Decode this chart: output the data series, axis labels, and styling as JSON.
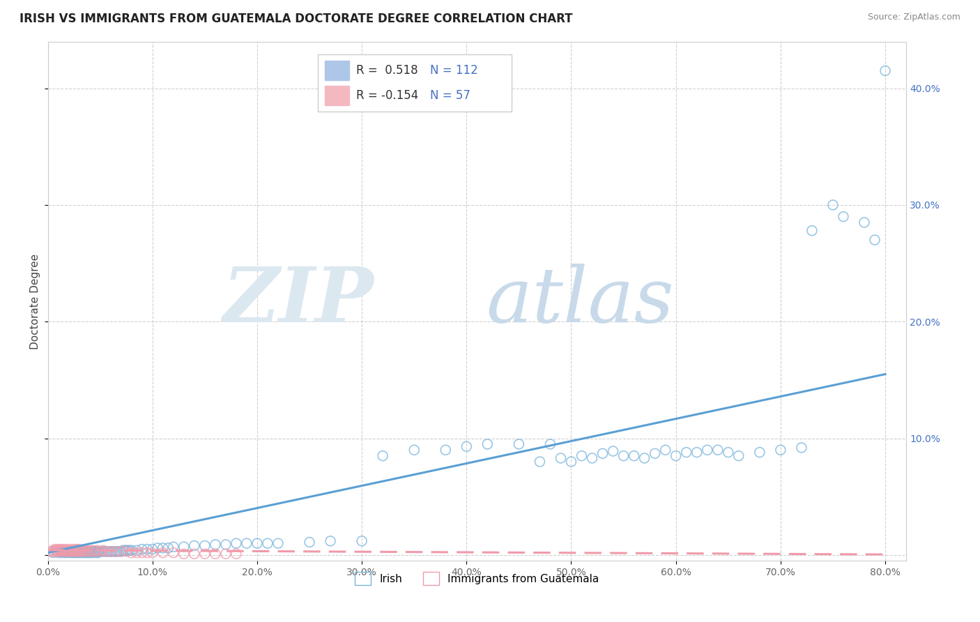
{
  "title": "IRISH VS IMMIGRANTS FROM GUATEMALA DOCTORATE DEGREE CORRELATION CHART",
  "source": "Source: ZipAtlas.com",
  "ylabel": "Doctorate Degree",
  "xlim": [
    0.0,
    0.82
  ],
  "ylim": [
    -0.005,
    0.44
  ],
  "xticks": [
    0.0,
    0.1,
    0.2,
    0.3,
    0.4,
    0.5,
    0.6,
    0.7,
    0.8
  ],
  "yticks": [
    0.0,
    0.1,
    0.2,
    0.3,
    0.4
  ],
  "xtick_labels": [
    "0.0%",
    "10.0%",
    "20.0%",
    "30.0%",
    "40.0%",
    "50.0%",
    "60.0%",
    "70.0%",
    "80.0%"
  ],
  "ytick_labels_right": [
    "",
    "10.0%",
    "20.0%",
    "30.0%",
    "40.0%"
  ],
  "irish_color": "#7ab5db",
  "guatemala_color": "#f09aaa",
  "irish_line_color": "#5a9fd4",
  "guatemala_line_color": "#f09aaa",
  "background_color": "#ffffff",
  "grid_color": "#d0d0d0",
  "title_fontsize": 12,
  "axis_label_fontsize": 11,
  "tick_fontsize": 10,
  "legend_R1": "R =  0.518",
  "legend_N1": "N = 112",
  "legend_R2": "R = -0.154",
  "legend_N2": "N = 57",
  "legend_color1": "#aec6e8",
  "legend_color2": "#f4b8c1",
  "legend_text_color": "#4472c4",
  "watermark_zip_color": "#e0e8f0",
  "watermark_atlas_color": "#d0dce8",
  "irish_x": [
    0.005,
    0.008,
    0.01,
    0.012,
    0.013,
    0.015,
    0.016,
    0.017,
    0.018,
    0.019,
    0.02,
    0.021,
    0.022,
    0.023,
    0.024,
    0.025,
    0.026,
    0.027,
    0.028,
    0.029,
    0.03,
    0.031,
    0.032,
    0.033,
    0.034,
    0.035,
    0.036,
    0.037,
    0.038,
    0.039,
    0.04,
    0.041,
    0.042,
    0.043,
    0.044,
    0.045,
    0.046,
    0.047,
    0.048,
    0.049,
    0.05,
    0.052,
    0.054,
    0.056,
    0.058,
    0.06,
    0.062,
    0.064,
    0.066,
    0.068,
    0.07,
    0.072,
    0.074,
    0.076,
    0.078,
    0.08,
    0.085,
    0.09,
    0.095,
    0.1,
    0.105,
    0.11,
    0.115,
    0.12,
    0.13,
    0.14,
    0.15,
    0.16,
    0.17,
    0.18,
    0.19,
    0.2,
    0.21,
    0.22,
    0.25,
    0.27,
    0.3,
    0.32,
    0.35,
    0.38,
    0.4,
    0.42,
    0.45,
    0.48,
    0.5,
    0.52,
    0.55,
    0.58,
    0.6,
    0.62,
    0.64,
    0.65,
    0.66,
    0.68,
    0.7,
    0.72,
    0.73,
    0.75,
    0.76,
    0.78,
    0.79,
    0.8,
    0.47,
    0.49,
    0.51,
    0.53,
    0.54,
    0.56,
    0.57,
    0.59,
    0.61,
    0.63
  ],
  "irish_y": [
    0.002,
    0.003,
    0.002,
    0.003,
    0.002,
    0.003,
    0.002,
    0.003,
    0.002,
    0.003,
    0.003,
    0.002,
    0.003,
    0.002,
    0.003,
    0.002,
    0.003,
    0.002,
    0.003,
    0.002,
    0.003,
    0.002,
    0.003,
    0.002,
    0.003,
    0.002,
    0.003,
    0.002,
    0.003,
    0.002,
    0.003,
    0.002,
    0.003,
    0.002,
    0.003,
    0.003,
    0.002,
    0.003,
    0.002,
    0.003,
    0.003,
    0.003,
    0.003,
    0.003,
    0.003,
    0.003,
    0.003,
    0.003,
    0.003,
    0.003,
    0.003,
    0.004,
    0.004,
    0.004,
    0.004,
    0.004,
    0.004,
    0.005,
    0.005,
    0.005,
    0.006,
    0.006,
    0.006,
    0.007,
    0.007,
    0.008,
    0.008,
    0.009,
    0.009,
    0.01,
    0.01,
    0.01,
    0.01,
    0.01,
    0.011,
    0.012,
    0.012,
    0.085,
    0.09,
    0.09,
    0.093,
    0.095,
    0.095,
    0.095,
    0.08,
    0.083,
    0.085,
    0.087,
    0.085,
    0.088,
    0.09,
    0.088,
    0.085,
    0.088,
    0.09,
    0.092,
    0.278,
    0.3,
    0.29,
    0.285,
    0.27,
    0.415,
    0.08,
    0.083,
    0.085,
    0.087,
    0.089,
    0.085,
    0.083,
    0.09,
    0.088,
    0.09
  ],
  "guat_x": [
    0.003,
    0.005,
    0.006,
    0.007,
    0.008,
    0.009,
    0.01,
    0.011,
    0.012,
    0.013,
    0.014,
    0.015,
    0.016,
    0.017,
    0.018,
    0.019,
    0.02,
    0.021,
    0.022,
    0.023,
    0.024,
    0.025,
    0.026,
    0.027,
    0.028,
    0.029,
    0.03,
    0.031,
    0.032,
    0.033,
    0.035,
    0.037,
    0.039,
    0.041,
    0.043,
    0.045,
    0.047,
    0.05,
    0.053,
    0.056,
    0.06,
    0.065,
    0.07,
    0.075,
    0.08,
    0.085,
    0.09,
    0.095,
    0.1,
    0.11,
    0.12,
    0.13,
    0.14,
    0.15,
    0.16,
    0.17,
    0.18
  ],
  "guat_y": [
    0.003,
    0.004,
    0.003,
    0.005,
    0.004,
    0.003,
    0.005,
    0.004,
    0.003,
    0.005,
    0.004,
    0.003,
    0.005,
    0.004,
    0.003,
    0.004,
    0.005,
    0.003,
    0.004,
    0.003,
    0.005,
    0.004,
    0.003,
    0.005,
    0.004,
    0.003,
    0.005,
    0.004,
    0.003,
    0.004,
    0.004,
    0.003,
    0.004,
    0.003,
    0.004,
    0.003,
    0.004,
    0.003,
    0.004,
    0.003,
    0.003,
    0.003,
    0.003,
    0.003,
    0.002,
    0.002,
    0.002,
    0.002,
    0.002,
    0.002,
    0.002,
    0.001,
    0.001,
    0.001,
    0.001,
    0.001,
    0.001
  ],
  "irish_line_x0": 0.0,
  "irish_line_x1": 0.8,
  "irish_line_y0": 0.002,
  "irish_line_y1": 0.155,
  "guat_line_x0": 0.0,
  "guat_line_x1": 0.8,
  "guat_line_y0": 0.0042,
  "guat_line_y1": 0.0005
}
